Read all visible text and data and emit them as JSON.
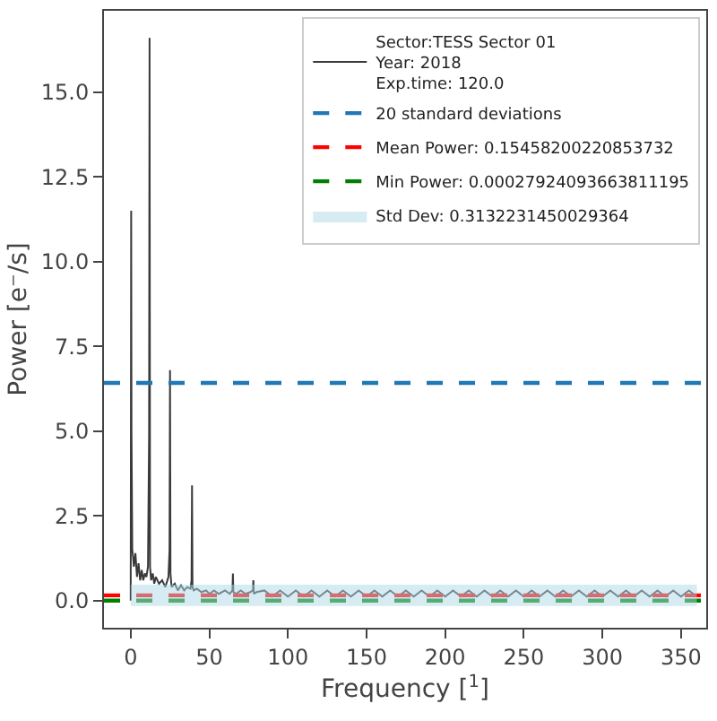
{
  "chart_data": {
    "type": "line",
    "xlabel": "Frequency [$^{1}$]",
    "ylabel": "Power [e⁻/s]",
    "xlim": [
      -17,
      366
    ],
    "xticks": [
      0,
      50,
      100,
      150,
      200,
      250,
      300,
      350
    ],
    "ylim": [
      -0.8,
      17.4
    ],
    "yticks": [
      {
        "value": 0,
        "label": "0.0"
      },
      {
        "value": 2.5,
        "label": "2.5"
      },
      {
        "value": 5,
        "label": "5.0"
      },
      {
        "value": 7.5,
        "label": "7.5"
      },
      {
        "value": 10,
        "label": "10.0"
      },
      {
        "value": 12.5,
        "label": "12.5"
      },
      {
        "value": 15,
        "label": "15.0"
      }
    ],
    "legend": "top right",
    "x": [
      0,
      0.3,
      0.5,
      0.7,
      1,
      1.5,
      2,
      3,
      4,
      5,
      6,
      7,
      8,
      9,
      10,
      11,
      11.7,
      12,
      12.3,
      13,
      14,
      15,
      16,
      18,
      20,
      22,
      24,
      24.7,
      25,
      25.3,
      26,
      28,
      30,
      32,
      34,
      36,
      38,
      38.7,
      39,
      39.3,
      40,
      42,
      45,
      48,
      50,
      53,
      56,
      60,
      63,
      64.7,
      65,
      65.3,
      67,
      70,
      73,
      76,
      77.7,
      78,
      78.3,
      80,
      85,
      90,
      95,
      100,
      105,
      110,
      115,
      120,
      125,
      130,
      135,
      140,
      145,
      150,
      155,
      160,
      165,
      170,
      175,
      180,
      185,
      190,
      195,
      200,
      205,
      210,
      215,
      220,
      225,
      230,
      235,
      240,
      245,
      250,
      255,
      260,
      265,
      270,
      275,
      280,
      285,
      290,
      295,
      300,
      305,
      310,
      315,
      320,
      325,
      330,
      335,
      340,
      345,
      350,
      355,
      360
    ],
    "series": [
      {
        "name": "Sector:TESS Sector 01\nYear: 2018\nExp.time: 120.0",
        "color": "#3a3a3a",
        "values": [
          0,
          11.5,
          5.0,
          3.6,
          1.5,
          1.3,
          1.0,
          1.4,
          0.7,
          1.1,
          0.6,
          0.9,
          0.6,
          0.8,
          0.7,
          1.0,
          4.9,
          16.6,
          1.0,
          0.6,
          0.8,
          0.5,
          0.7,
          0.5,
          0.6,
          0.4,
          0.7,
          1.5,
          6.8,
          0.8,
          0.4,
          0.5,
          0.3,
          0.45,
          0.3,
          0.4,
          0.35,
          0.6,
          3.4,
          0.4,
          0.3,
          0.35,
          0.25,
          0.3,
          0.2,
          0.3,
          0.2,
          0.3,
          0.2,
          0.3,
          0.8,
          0.25,
          0.2,
          0.3,
          0.2,
          0.25,
          0.3,
          0.6,
          0.2,
          0.25,
          0.3,
          0.12,
          0.3,
          0.12,
          0.3,
          0.12,
          0.3,
          0.12,
          0.3,
          0.12,
          0.3,
          0.12,
          0.3,
          0.12,
          0.3,
          0.12,
          0.3,
          0.12,
          0.3,
          0.12,
          0.3,
          0.12,
          0.3,
          0.12,
          0.3,
          0.12,
          0.3,
          0.12,
          0.3,
          0.12,
          0.3,
          0.12,
          0.3,
          0.12,
          0.3,
          0.12,
          0.3,
          0.12,
          0.3,
          0.12,
          0.3,
          0.12,
          0.3,
          0.12,
          0.3,
          0.12,
          0.3,
          0.12,
          0.3,
          0.12,
          0.3,
          0.12,
          0.3,
          0.12,
          0.3,
          0.12
        ]
      }
    ],
    "ref_lines": [
      {
        "axis": "y",
        "value": 6.42,
        "label": "20 standard deviations",
        "color": "#1f77b4",
        "line_style": "dashed"
      },
      {
        "axis": "y",
        "value": 0.15458200220853732,
        "label": "Mean Power: 0.15458200220853732",
        "color": "#ff0000",
        "line_style": "dashed"
      },
      {
        "axis": "y",
        "value": 0.00027924093663811195,
        "label": "Min Power: 0.00027924093663811195",
        "color": "#008000",
        "line_style": "dashed"
      }
    ],
    "bands": [
      {
        "axis": "y",
        "from": -0.16,
        "to": 0.47,
        "label": "Std Dev: 0.3132231450029364",
        "color": "#add8e6"
      }
    ]
  }
}
